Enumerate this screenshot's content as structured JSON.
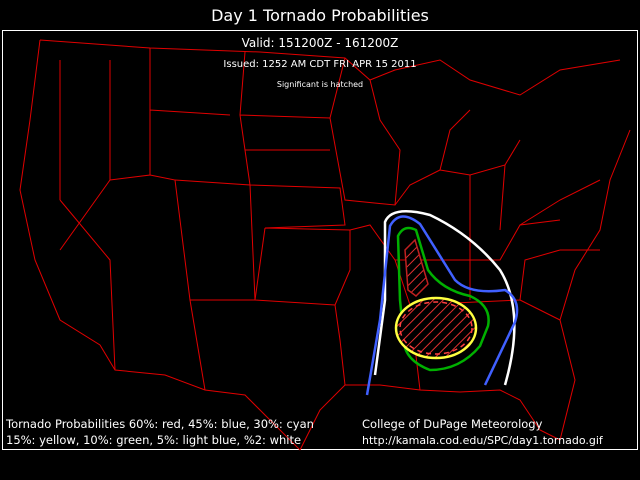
{
  "header": {
    "title": "Day 1 Tornado Probabilities",
    "valid": "Valid: 151200Z - 161200Z",
    "issued": "Issued: 1252 AM CDT FRI APR 15 2011",
    "note": "Significant is hatched"
  },
  "legend": {
    "lines": [
      "Tornado Probabilities 60%: red, 45%: blue, 30%: cyan",
      "15%: yellow, 10%: green, 5%: light blue, %2: white"
    ]
  },
  "credit": {
    "lines": [
      "College of DuPage Meteorology",
      "http://kamala.cod.edu/SPC/day1.tornado.gif"
    ]
  }
}
